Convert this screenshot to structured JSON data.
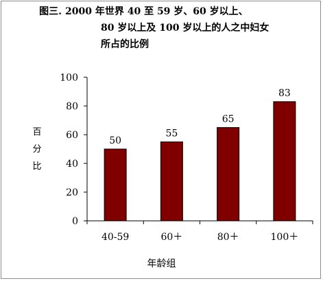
{
  "title": {
    "label": "图三.",
    "line1": "2000 年世界 40 至 59 岁、60 岁以上、",
    "line2": "80 岁以上及 100 岁以上的人之中妇女",
    "line3": "所占的比例"
  },
  "chart_data": {
    "type": "bar",
    "categories": [
      "40-59",
      "60＋",
      "80＋",
      "100＋"
    ],
    "values": [
      50,
      55,
      65,
      83
    ],
    "value_labels": [
      "50",
      "55",
      "65",
      "83"
    ],
    "ylim": [
      0,
      100
    ],
    "yticks": [
      0,
      20,
      40,
      60,
      80,
      100
    ],
    "ylabel": "百分比",
    "xlabel": "年龄组",
    "bar_color": "#800000",
    "grid": false,
    "legend": "none"
  }
}
